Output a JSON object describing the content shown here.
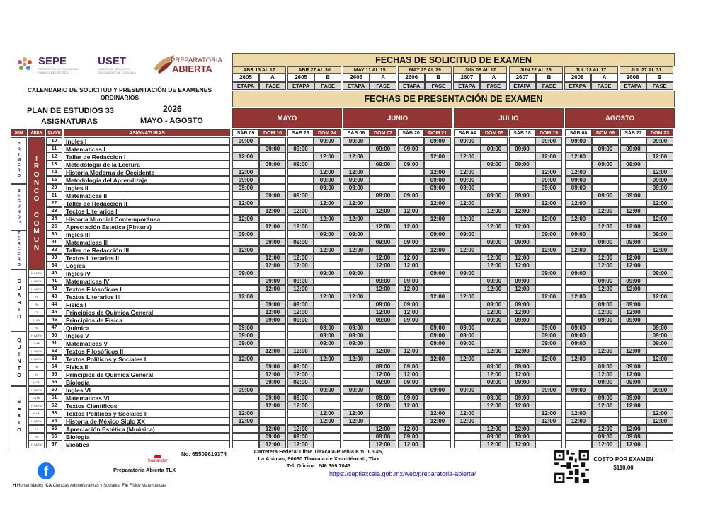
{
  "logos": {
    "sepe": {
      "name": "SEPE",
      "sub1": "SECRETARÍA DE EDUCACIÓN",
      "sub2": "PÚBLICA DEL ESTADO"
    },
    "uset": {
      "name": "USET",
      "sub1": "UNIDAD DE SERVICIOS",
      "sub2": "EDUCATIVOS DE TLAXCALA"
    },
    "prepa": {
      "line1": "PREPARATORIA",
      "line2": "ABIERTA"
    }
  },
  "title": {
    "line1": "CALENDARIO DE SOLICITUD Y PRESENTACIÓN DE EXAMENES",
    "line2": "ORDINARIOS"
  },
  "plan": "PLAN DE ESTUDIOS 33",
  "year": "2026",
  "subtitle": "ASIGNATURAS",
  "period": "MAYO - AGOSTO",
  "solicitud": {
    "title": "FECHAS DE SOLICITUD DE EXAMEN",
    "etapa_label": "ETAPA",
    "fase_label": "FASE",
    "groups": [
      {
        "dates": "ABR 13 AL 17",
        "etapa": "2605",
        "fase": "A"
      },
      {
        "dates": "ABR 27 AL 30",
        "etapa": "2605",
        "fase": "B"
      },
      {
        "dates": "MAY 11 AL 15",
        "etapa": "2606",
        "fase": "A"
      },
      {
        "dates": "MAY 25 AL 29",
        "etapa": "2606",
        "fase": "B"
      },
      {
        "dates": "JUN 08 AL 12",
        "etapa": "2607",
        "fase": "A"
      },
      {
        "dates": "JUN 22 AL 26",
        "etapa": "2607",
        "fase": "B"
      },
      {
        "dates": "JUL 13 AL 17",
        "etapa": "2608",
        "fase": "A"
      },
      {
        "dates": "JUL 27 AL 31",
        "etapa": "2608",
        "fase": "B"
      }
    ]
  },
  "presentacion": {
    "title": "FECHAS DE PRESENTACIÓN DE EXAMEN",
    "months": [
      {
        "name": "MAYO",
        "days": [
          "SÁB 09",
          "DOM 10",
          "SÁB 23",
          "DOM 24"
        ]
      },
      {
        "name": "JUNIO",
        "days": [
          "SÁB 06",
          "DOM 07",
          "SÁB 20",
          "DOM 21"
        ]
      },
      {
        "name": "JULIO",
        "days": [
          "SÁB 04",
          "DOM 05",
          "SÁB 18",
          "DOM 19"
        ]
      },
      {
        "name": "AGOSTO",
        "days": [
          "SÁB 08",
          "DOM 09",
          "SÁB 22",
          "DOM 23"
        ]
      }
    ]
  },
  "columns": {
    "sem": "SEM",
    "area": "ÁREA",
    "clave": "CLAVE",
    "asignaturas": "ASIGNATURAS"
  },
  "semesters": [
    {
      "label": "PRIMERO",
      "rows": 6
    },
    {
      "label": "SEGUNDO",
      "rows": 6
    },
    {
      "label": "TERCERO",
      "rows": 5
    },
    {
      "label": "CUARTO",
      "rows": 8
    },
    {
      "label": "QUINTO",
      "rows": 7
    },
    {
      "label": "SEXTO",
      "rows": 8
    }
  ],
  "tronco_comun": {
    "label": "TRONCO COMUN",
    "rows": 17
  },
  "subjects": [
    {
      "clave": "10",
      "name": "Ingles I",
      "area": "",
      "times": [
        "09:00",
        "",
        "",
        "09:00",
        "09:00",
        "",
        "",
        "09:00",
        "09:00",
        "",
        "",
        "09:00",
        "09:00",
        "",
        "",
        "09:00"
      ]
    },
    {
      "clave": "11",
      "name": "Matematicas  I",
      "area": "",
      "times": [
        "",
        "09:00",
        "09:00",
        "",
        "",
        "09:00",
        "09:00",
        "",
        "",
        "09:00",
        "09:00",
        "",
        "",
        "09:00",
        "09:00",
        ""
      ]
    },
    {
      "clave": "12",
      "name": "Taller de Redaccion I",
      "area": "",
      "times": [
        "12:00",
        "",
        "",
        "12:00",
        "12:00",
        "",
        "",
        "12:00",
        "12:00",
        "",
        "",
        "12:00",
        "12:00",
        "",
        "",
        "12:00"
      ]
    },
    {
      "clave": "13",
      "name": "Metodología de la Lectura",
      "area": "",
      "times": [
        "",
        "09:00",
        "09:00",
        "",
        "",
        "09:00",
        "09:00",
        "",
        "",
        "09:00",
        "09:00",
        "",
        "",
        "09:00",
        "09:00",
        ""
      ]
    },
    {
      "clave": "14",
      "name": "Historia Moderna de Occidente",
      "area": "",
      "times": [
        "12:00",
        "",
        "",
        "12:00",
        "12:00",
        "",
        "",
        "12:00",
        "12:00",
        "",
        "",
        "12:00",
        "12:00",
        "",
        "",
        "12:00"
      ]
    },
    {
      "clave": "15",
      "name": "Metodología del Aprendizaje",
      "area": "",
      "times": [
        "09:00",
        "",
        "",
        "09:00",
        "09:00",
        "",
        "",
        "09:00",
        "09:00",
        "",
        "",
        "09:00",
        "09:00",
        "",
        "",
        "09:00"
      ]
    },
    {
      "clave": "20",
      "name": "Ingles II",
      "area": "",
      "times": [
        "09:00",
        "",
        "",
        "09:00",
        "09:00",
        "",
        "",
        "09:00",
        "09:00",
        "",
        "",
        "09:00",
        "09:00",
        "",
        "",
        "09:00"
      ]
    },
    {
      "clave": "21",
      "name": "Matematicas II",
      "area": "",
      "times": [
        "",
        "09:00",
        "09:00",
        "",
        "",
        "09:00",
        "09:00",
        "",
        "",
        "09:00",
        "09:00",
        "",
        "",
        "09:00",
        "09:00",
        ""
      ]
    },
    {
      "clave": "22",
      "name": "Taller de Redaccion II",
      "area": "",
      "times": [
        "12:00",
        "",
        "",
        "12:00",
        "12:00",
        "",
        "",
        "12:00",
        "12:00",
        "",
        "",
        "12:00",
        "12:00",
        "",
        "",
        "12:00"
      ]
    },
    {
      "clave": "23",
      "name": "Tectos Literarios I",
      "area": "",
      "times": [
        "",
        "12:00",
        "12:00",
        "",
        "",
        "12:00",
        "12:00",
        "",
        "",
        "12:00",
        "12:00",
        "",
        "",
        "12:00",
        "12:00",
        ""
      ]
    },
    {
      "clave": "24",
      "name": "Historia Mundial Contemporánea",
      "area": "",
      "times": [
        "12:00",
        "",
        "",
        "12:00",
        "12:00",
        "",
        "",
        "12:00",
        "12:00",
        "",
        "",
        "12:00",
        "12:00",
        "",
        "",
        "12:00"
      ]
    },
    {
      "clave": "25",
      "name": "Apreciación Estetica (Pintura)",
      "area": "",
      "times": [
        "",
        "12:00",
        "12:00",
        "",
        "",
        "12:00",
        "12:00",
        "",
        "",
        "12:00",
        "12:00",
        "",
        "",
        "12:00",
        "12:00",
        ""
      ]
    },
    {
      "clave": "30",
      "name": "Inglés III",
      "area": "",
      "times": [
        "09:00",
        "",
        "",
        "09:00",
        "09:00",
        "",
        "",
        "09:00",
        "09:00",
        "",
        "",
        "09:00",
        "09:00",
        "",
        "",
        "09:00"
      ]
    },
    {
      "clave": "31",
      "name": "Matematicas III",
      "area": "",
      "times": [
        "",
        "09:00",
        "09:00",
        "",
        "",
        "09:00",
        "09:00",
        "",
        "",
        "09:00",
        "09:00",
        "",
        "",
        "09:00",
        "09:00",
        ""
      ]
    },
    {
      "clave": "32",
      "name": "Taller de Redacción III",
      "area": "",
      "times": [
        "12:00",
        "",
        "",
        "12:00",
        "12:00",
        "",
        "",
        "12:00",
        "12:00",
        "",
        "",
        "12:00",
        "12:00",
        "",
        "",
        "12:00"
      ]
    },
    {
      "clave": "33",
      "name": "Textos Literarios II",
      "area": "",
      "times": [
        "",
        "12:00",
        "12:00",
        "",
        "",
        "12:00",
        "12:00",
        "",
        "",
        "12:00",
        "12:00",
        "",
        "",
        "12:00",
        "12:00",
        ""
      ]
    },
    {
      "clave": "34",
      "name": "Lógica",
      "area": "",
      "times": [
        "",
        "12:00",
        "12:00",
        "",
        "",
        "12:00",
        "12:00",
        "",
        "",
        "12:00",
        "12:00",
        "",
        "",
        "12:00",
        "12:00",
        ""
      ]
    },
    {
      "clave": "40",
      "name": "Ingles IV",
      "area": "H CA FM",
      "times": [
        "09:00",
        "",
        "",
        "09:00",
        "09:00",
        "",
        "",
        "09:00",
        "09:00",
        "",
        "",
        "09:00",
        "09:00",
        "",
        "",
        "09:00"
      ]
    },
    {
      "clave": "41",
      "name": "Matematicas IV",
      "area": "H CA FM",
      "times": [
        "",
        "09:00",
        "09:00",
        "",
        "",
        "09:00",
        "09:00",
        "",
        "",
        "09:00",
        "09:00",
        "",
        "",
        "09:00",
        "09:00",
        ""
      ]
    },
    {
      "clave": "42",
      "name": "Textos Filósoficos I",
      "area": "H CA FM",
      "times": [
        "",
        "12:00",
        "12:00",
        "",
        "",
        "12:00",
        "12:00",
        "",
        "",
        "12:00",
        "12:00",
        "",
        "",
        "12:00",
        "12:00",
        ""
      ]
    },
    {
      "clave": "43",
      "name": "Textos Literarios III",
      "area": "H",
      "times": [
        "12:00",
        "",
        "",
        "12:00",
        "12:00",
        "",
        "",
        "12:00",
        "12:00",
        "",
        "",
        "12:00",
        "12:00",
        "",
        "",
        "12:00"
      ]
    },
    {
      "clave": "44",
      "name": "Fisica I",
      "area": "FM",
      "times": [
        "",
        "09:00",
        "09:00",
        "",
        "",
        "09:00",
        "09:00",
        "",
        "",
        "09:00",
        "09:00",
        "",
        "",
        "09:00",
        "09:00",
        ""
      ]
    },
    {
      "clave": "45",
      "name": "Principios de Química General",
      "area": "CA",
      "times": [
        "",
        "12:00",
        "12:00",
        "",
        "",
        "12:00",
        "12:00",
        "",
        "",
        "12:00",
        "12:00",
        "",
        "",
        "12:00",
        "12:00",
        ""
      ]
    },
    {
      "clave": "46",
      "name": "Principios de Física",
      "area": "H CA",
      "times": [
        "",
        "09:00",
        "09:00",
        "",
        "",
        "09:00",
        "09:00",
        "",
        "",
        "09:00",
        "09:00",
        "",
        "",
        "09:00",
        "09:00",
        ""
      ]
    },
    {
      "clave": "47",
      "name": "Química",
      "area": "FM",
      "times": [
        "09:00",
        "",
        "",
        "09:00",
        "09:00",
        "",
        "",
        "09:00",
        "09:00",
        "",
        "",
        "09:00",
        "09:00",
        "",
        "",
        "09:00"
      ]
    },
    {
      "clave": "50",
      "name": "Ingles V",
      "area": "H CA FM",
      "times": [
        "09:00",
        "",
        "",
        "09:00",
        "09:00",
        "",
        "",
        "09:00",
        "09:00",
        "",
        "",
        "09:00",
        "09:00",
        "",
        "",
        "09:00"
      ]
    },
    {
      "clave": "51",
      "name": "Matemáticas V",
      "area": "CA FM",
      "times": [
        "09:00",
        "",
        "",
        "09:00",
        "09:00",
        "",
        "",
        "09:00",
        "09:00",
        "",
        "",
        "09:00",
        "09:00",
        "",
        "",
        "09:00"
      ]
    },
    {
      "clave": "52",
      "name": "Textos Filosóficos II",
      "area": "H CA FM",
      "times": [
        "",
        "12:00",
        "12:00",
        "",
        "",
        "12:00",
        "12:00",
        "",
        "",
        "12:00",
        "12:00",
        "",
        "",
        "12:00",
        "12:00",
        ""
      ]
    },
    {
      "clave": "53",
      "name": "Textos Políticos y Sociales I",
      "area": "H CA FM",
      "times": [
        "12:00",
        "",
        "",
        "12:00",
        "12:00",
        "",
        "",
        "12:00",
        "12:00",
        "",
        "",
        "12:00",
        "12:00",
        "",
        "",
        "12:00"
      ]
    },
    {
      "clave": "54",
      "name": "Física II",
      "area": "FM",
      "times": [
        "",
        "09:00",
        "09:00",
        "",
        "",
        "09:00",
        "09:00",
        "",
        "",
        "09:00",
        "09:00",
        "",
        "",
        "09:00",
        "09:00",
        ""
      ]
    },
    {
      "clave": "55",
      "name": "Principios de Química General",
      "area": "H",
      "times": [
        "",
        "12:00",
        "12:00",
        "",
        "",
        "12:00",
        "12:00",
        "",
        "",
        "12:00",
        "12:00",
        "",
        "",
        "12:00",
        "12:00",
        ""
      ]
    },
    {
      "clave": "56",
      "name": "Biología",
      "area": "H CA",
      "times": [
        "",
        "09:00",
        "09:00",
        "",
        "",
        "09:00",
        "09:00",
        "",
        "",
        "09:00",
        "09:00",
        "",
        "",
        "09:00",
        "09:00",
        ""
      ]
    },
    {
      "clave": "60",
      "name": "Ingles VI",
      "area": "H CA FM",
      "times": [
        "09:00",
        "",
        "",
        "09:00",
        "09:00",
        "",
        "",
        "09:00",
        "09:00",
        "",
        "",
        "09:00",
        "09:00",
        "",
        "",
        "09:00"
      ]
    },
    {
      "clave": "61",
      "name": "Matematicas VI",
      "area": "CA FM",
      "times": [
        "",
        "09:00",
        "09:00",
        "",
        "",
        "09:00",
        "09:00",
        "",
        "",
        "09:00",
        "09:00",
        "",
        "",
        "09:00",
        "09:00",
        ""
      ]
    },
    {
      "clave": "62",
      "name": "Textos Científicos",
      "area": "H CA FM",
      "times": [
        "",
        "12:00",
        "12:00",
        "",
        "",
        "12:00",
        "12:00",
        "",
        "",
        "12:00",
        "12:00",
        "",
        "",
        "12:00",
        "12:00",
        ""
      ]
    },
    {
      "clave": "63",
      "name": "Textos Politicos y Sociales II",
      "area": "H CA",
      "times": [
        "12:00",
        "",
        "",
        "12:00",
        "12:00",
        "",
        "",
        "12:00",
        "12:00",
        "",
        "",
        "12:00",
        "12:00",
        "",
        "",
        "12:00"
      ]
    },
    {
      "clave": "64",
      "name": "Historia de México Siglo XX",
      "area": "H CA FM",
      "times": [
        "12:00",
        "",
        "",
        "12:00",
        "12:00",
        "",
        "",
        "12:00",
        "12:00",
        "",
        "",
        "12:00",
        "12:00",
        "",
        "",
        "12:00"
      ]
    },
    {
      "clave": "65",
      "name": "Apreciación Estética (Muúsica)",
      "area": "H",
      "times": [
        "",
        "12:00",
        "12:00",
        "",
        "",
        "12:00",
        "12:00",
        "",
        "",
        "12:00",
        "12:00",
        "",
        "",
        "12:00",
        "12:00",
        ""
      ]
    },
    {
      "clave": "66",
      "name": "Biología",
      "area": "FM",
      "times": [
        "",
        "09:00",
        "09:00",
        "",
        "",
        "09:00",
        "09:00",
        "",
        "",
        "09:00",
        "09:00",
        "",
        "",
        "09:00",
        "09:00",
        ""
      ]
    },
    {
      "clave": "67",
      "name": "Bioética",
      "area": "H CA FM",
      "times": [
        "",
        "12:00",
        "12:00",
        "",
        "",
        "12:00",
        "12:00",
        "",
        "",
        "12:00",
        "12:00",
        "",
        "",
        "12:00",
        "12:00",
        ""
      ]
    }
  ],
  "footer": {
    "bank": "Santander",
    "account": "No. 65509619374",
    "address1": "Carretera Federal Libre Tlaxcala-Puebla Km. 1.5 #5,",
    "address2": "La Animas, 90030 Tlaxcala de Xicohténcatl, Tlax",
    "phone": "Tel. Oficina: 246 309 7043",
    "link": "https://septlaxcala.gob.mx/web/preparatoria-abierta/",
    "facebook": "Preparatoria Abierta TLX",
    "cost_label": "COSTO POR EXAMEN",
    "cost": "$110.00",
    "legend": [
      {
        "code": "H",
        "text": "Humanidades"
      },
      {
        "code": "CA",
        "text": "Ciencias Administrativas y Sociales"
      },
      {
        "code": "FM",
        "text": "Físico Matemáticas"
      }
    ]
  },
  "colors": {
    "header_red": "#943634",
    "header_tan": "#ecd9a6",
    "filled_cell": "#d9d9d9",
    "brand_purple": "#4b2b68"
  }
}
